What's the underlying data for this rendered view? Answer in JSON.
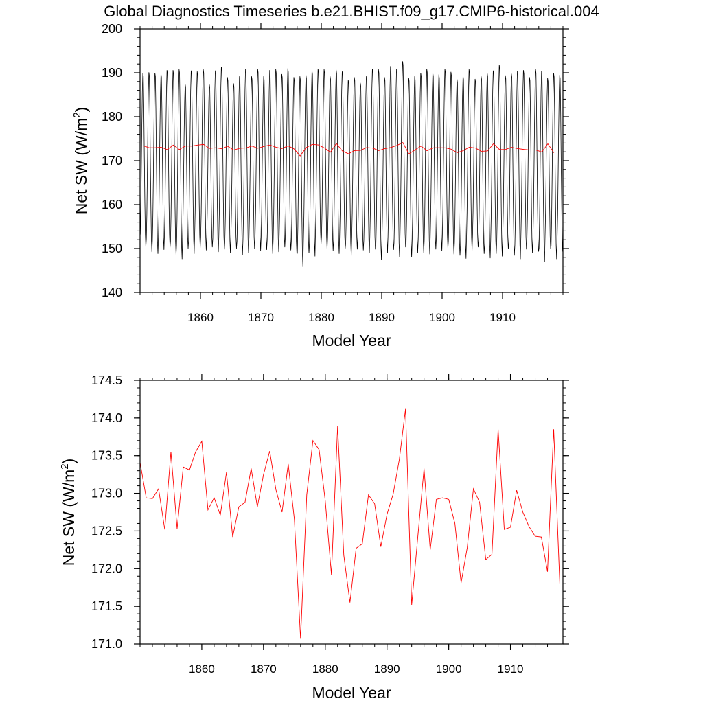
{
  "page": {
    "title": "Global Diagnostics Timeseries b.e21.BHIST.f09_g17.CMIP6-historical.004"
  },
  "colors": {
    "monthly_series": "#000000",
    "annual_series": "#ff0000"
  },
  "chart_data": [
    {
      "type": "line",
      "title": "Global Diagnostics Timeseries b.e21.BHIST.f09_g17.CMIP6-historical.004",
      "xlabel": "Model Year",
      "ylabel_main": "Net SW (W/m",
      "ylabel_sup": "2",
      "ylabel_end": ")",
      "xlim": [
        1850,
        1920
      ],
      "ylim": [
        140,
        200
      ],
      "xticks": [
        1860,
        1870,
        1880,
        1890,
        1900,
        1910
      ],
      "yticks": [
        140,
        150,
        160,
        170,
        180,
        190,
        200
      ],
      "ytick_labels": [
        "140",
        "150",
        "160",
        "170",
        "180",
        "190",
        "200"
      ],
      "grid": false,
      "series": [
        {
          "style": "monthly",
          "x_start": 1850.04,
          "x_step": 0.0833333,
          "seasonal_cycle": [
            152.5,
            158.0,
            167.0,
            177.0,
            185.0,
            189.4,
            188.6,
            181.0,
            170.0,
            160.0,
            152.5,
            149.6
          ],
          "annual_peaks": [
            190.0,
            190.1,
            190.0,
            189.8,
            190.6,
            190.6,
            190.8,
            187.5,
            190.5,
            190.3,
            190.8,
            187.4,
            190.5,
            191.4,
            189.0,
            187.6,
            189.2,
            190.8,
            189.2,
            190.9,
            189.2,
            190.6,
            190.8,
            189.7,
            191.0,
            189.0,
            189.2,
            189.5,
            190.5,
            190.9,
            190.8,
            189.2,
            190.7,
            190.3,
            188.4,
            189.0,
            187.7,
            189.2,
            190.9,
            190.8,
            189.0,
            191.5,
            190.8,
            192.6,
            188.9,
            189.2,
            190.0,
            190.9,
            190.0,
            189.6,
            190.9,
            190.2,
            188.6,
            189.3,
            190.8,
            188.6,
            189.2,
            190.0,
            190.5,
            191.8,
            189.4,
            189.8,
            190.4,
            190.6,
            189.0,
            190.8,
            190.4,
            188.8,
            189.9,
            189.5
          ],
          "annual_troughs": [
            150.3,
            149.2,
            148.8,
            149.7,
            150.2,
            148.5,
            147.6,
            150.0,
            148.8,
            150.1,
            149.6,
            150.3,
            149.2,
            149.8,
            148.9,
            150.0,
            148.6,
            149.0,
            149.9,
            149.5,
            149.7,
            148.8,
            149.2,
            150.3,
            149.6,
            148.7,
            145.8,
            148.9,
            148.2,
            150.9,
            149.8,
            149.5,
            148.8,
            150.0,
            148.3,
            149.8,
            149.6,
            148.9,
            149.8,
            147.4,
            148.9,
            149.7,
            148.1,
            150.3,
            148.0,
            149.0,
            148.9,
            148.7,
            149.8,
            149.4,
            150.0,
            148.7,
            148.4,
            147.7,
            149.5,
            150.3,
            148.8,
            147.8,
            148.8,
            148.2,
            149.9,
            148.4,
            147.6,
            149.8,
            148.9,
            149.3,
            146.9,
            150.0,
            147.6,
            149.3
          ]
        },
        {
          "style": "annual",
          "x_start": 1850.5,
          "x_step": 1,
          "values": [
            173.41,
            172.94,
            172.93,
            173.06,
            172.52,
            173.55,
            172.53,
            173.35,
            173.31,
            173.55,
            173.69,
            172.78,
            172.94,
            172.71,
            173.28,
            172.42,
            172.82,
            172.88,
            173.33,
            172.82,
            173.25,
            173.56,
            173.05,
            172.75,
            173.39,
            172.65,
            171.07,
            172.98,
            173.7,
            173.58,
            172.9,
            171.92,
            173.89,
            172.18,
            171.55,
            172.27,
            172.33,
            172.98,
            172.86,
            172.29,
            172.72,
            172.99,
            173.45,
            174.12,
            171.52,
            172.43,
            173.33,
            172.25,
            172.92,
            172.94,
            172.92,
            172.6,
            171.81,
            172.28,
            173.06,
            172.88,
            172.12,
            172.19,
            173.85,
            172.52,
            172.55,
            173.04,
            172.75,
            172.56,
            172.43,
            172.42,
            171.96,
            173.85,
            171.78
          ]
        }
      ]
    },
    {
      "type": "line",
      "xlabel": "Model Year",
      "ylabel_main": "Net SW (W/m",
      "ylabel_sup": "2",
      "ylabel_end": ")",
      "xlim": [
        1850,
        1918.5
      ],
      "ylim": [
        171.0,
        174.5
      ],
      "xticks": [
        1860,
        1870,
        1880,
        1890,
        1900,
        1910
      ],
      "yticks": [
        171.0,
        171.5,
        172.0,
        172.5,
        173.0,
        173.5,
        174.0,
        174.5
      ],
      "ytick_labels": [
        "171.0",
        "171.5",
        "172.0",
        "172.5",
        "173.0",
        "173.5",
        "174.0",
        "174.5"
      ],
      "grid": false,
      "series": [
        {
          "style": "annual",
          "x_start": 1850,
          "x_step": 1,
          "values": [
            173.41,
            172.94,
            172.93,
            173.06,
            172.52,
            173.55,
            172.53,
            173.35,
            173.31,
            173.55,
            173.69,
            172.78,
            172.94,
            172.71,
            173.28,
            172.42,
            172.82,
            172.88,
            173.33,
            172.82,
            173.25,
            173.56,
            173.05,
            172.75,
            173.39,
            172.65,
            171.07,
            172.98,
            173.7,
            173.58,
            172.9,
            171.92,
            173.89,
            172.18,
            171.55,
            172.27,
            172.33,
            172.98,
            172.86,
            172.29,
            172.72,
            172.99,
            173.45,
            174.12,
            171.52,
            172.43,
            173.33,
            172.25,
            172.92,
            172.94,
            172.92,
            172.6,
            171.81,
            172.28,
            173.06,
            172.88,
            172.12,
            172.19,
            173.85,
            172.52,
            172.55,
            173.04,
            172.75,
            172.56,
            172.43,
            172.42,
            171.96,
            173.85,
            171.78
          ]
        }
      ]
    }
  ]
}
